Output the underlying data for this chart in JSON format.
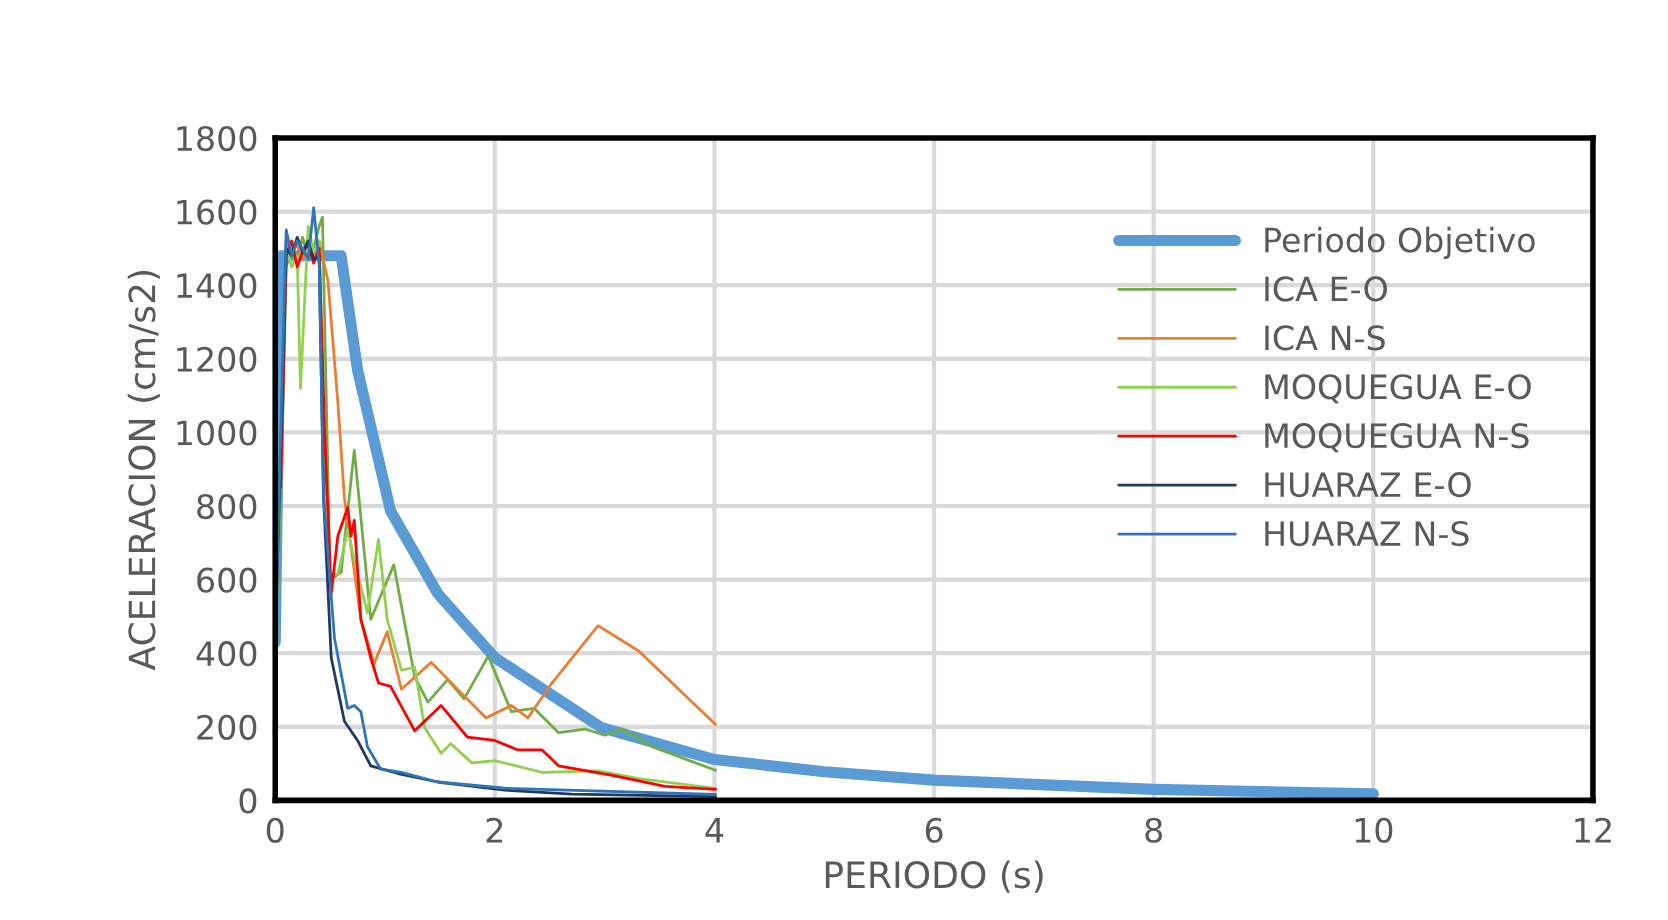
{
  "chart_data": {
    "type": "line",
    "xlabel": "PERIODO (s)",
    "ylabel": "ACELERACION (cm/s2)",
    "xlim": [
      0,
      12
    ],
    "xticks": [
      0,
      2,
      4,
      6,
      8,
      10,
      12
    ],
    "ylim": [
      0,
      1800
    ],
    "yticks": [
      0,
      200,
      400,
      600,
      800,
      1000,
      1200,
      1400,
      1600,
      1800
    ],
    "grid": true,
    "legend": "right",
    "marker": "none",
    "line_style": "solid",
    "series": [
      {
        "name": "Periodo Objetivo",
        "color": "#5b9bd5",
        "x": [
          0,
          0.05,
          0.6,
          0.75,
          1.05,
          1.48,
          2.0,
          2.97,
          4.0,
          5.0,
          6.0,
          8.0,
          10.0
        ],
        "values": [
          430,
          1480,
          1480,
          1169,
          787,
          562,
          388,
          198,
          111,
          78,
          55,
          30,
          18
        ]
      },
      {
        "name": "ICA E-O",
        "color": "#70ad47",
        "x": [
          0,
          0.05,
          0.1,
          0.15,
          0.2,
          0.25,
          0.3,
          0.35,
          0.4,
          0.43,
          0.5,
          0.6,
          0.72,
          0.87,
          1.08,
          1.27,
          1.39,
          1.57,
          1.72,
          1.94,
          2.15,
          2.36,
          2.58,
          2.82,
          3.0,
          3.16,
          3.43,
          4.01
        ],
        "values": [
          450,
          800,
          1450,
          1500,
          1480,
          1530,
          1470,
          1500,
          1560,
          1585,
          600,
          620,
          952,
          492,
          640,
          336,
          267,
          328,
          276,
          392,
          241,
          250,
          184,
          194,
          177,
          194,
          146,
          82
        ]
      },
      {
        "name": "ICA N-S",
        "color": "#ed7d31",
        "x": [
          0.05,
          0.1,
          0.15,
          0.2,
          0.25,
          0.3,
          0.35,
          0.4,
          0.48,
          0.57,
          0.63,
          0.78,
          0.9,
          1.02,
          1.15,
          1.42,
          1.72,
          1.92,
          2.15,
          2.3,
          2.52,
          2.94,
          3.31,
          4.01
        ],
        "values": [
          900,
          1520,
          1490,
          1510,
          1470,
          1530,
          1480,
          1520,
          1412,
          1082,
          822,
          492,
          371,
          458,
          302,
          375,
          284,
          224,
          258,
          224,
          319,
          475,
          406,
          206
        ]
      },
      {
        "name": "MOQUEGUA E-O",
        "color": "#92d050",
        "x": [
          0.05,
          0.1,
          0.15,
          0.2,
          0.23,
          0.3,
          0.35,
          0.4,
          0.48,
          0.57,
          0.66,
          0.75,
          0.84,
          0.94,
          1.02,
          1.15,
          1.27,
          1.36,
          1.51,
          1.6,
          1.79,
          2.0,
          2.43,
          2.94,
          3.31,
          4.01
        ],
        "values": [
          1000,
          1500,
          1450,
          1480,
          1120,
          1560,
          1490,
          1520,
          614,
          614,
          735,
          614,
          510,
          709,
          492,
          354,
          362,
          198,
          128,
          154,
          102,
          108,
          76,
          80,
          59,
          33
        ]
      },
      {
        "name": "MOQUEGUA N-S",
        "color": "#ff0000",
        "x": [
          0.05,
          0.1,
          0.15,
          0.2,
          0.25,
          0.3,
          0.35,
          0.4,
          0.45,
          0.51,
          0.57,
          0.66,
          0.69,
          0.72,
          0.78,
          0.87,
          0.94,
          1.05,
          1.27,
          1.51,
          1.75,
          2.0,
          2.21,
          2.43,
          2.58,
          3.07,
          3.55,
          4.01
        ],
        "values": [
          850,
          1480,
          1520,
          1450,
          1490,
          1510,
          1460,
          1500,
          1000,
          562,
          718,
          796,
          718,
          761,
          492,
          388,
          319,
          310,
          189,
          258,
          172,
          163,
          137,
          137,
          94,
          68,
          38,
          30
        ]
      },
      {
        "name": "HUARAZ E-O",
        "color": "#203864",
        "x": [
          0,
          0.05,
          0.1,
          0.15,
          0.2,
          0.25,
          0.3,
          0.35,
          0.4,
          0.44,
          0.51,
          0.63,
          0.75,
          0.87,
          1.12,
          1.48,
          2.09,
          2.7,
          4.01
        ],
        "values": [
          440,
          950,
          1500,
          1480,
          1530,
          1490,
          1520,
          1470,
          1480,
          822,
          388,
          215,
          163,
          94,
          73,
          50,
          28,
          17,
          10
        ]
      },
      {
        "name": "HUARAZ N-S",
        "color": "#2e75b6",
        "x": [
          0,
          0.05,
          0.1,
          0.15,
          0.2,
          0.25,
          0.3,
          0.35,
          0.4,
          0.44,
          0.54,
          0.66,
          0.72,
          0.78,
          0.84,
          0.96,
          1.15,
          1.48,
          2.09,
          4.01
        ],
        "values": [
          450,
          1000,
          1550,
          1480,
          1520,
          1500,
          1470,
          1610,
          1460,
          822,
          440,
          250,
          258,
          241,
          146,
          85,
          76,
          50,
          33,
          16
        ]
      }
    ]
  }
}
